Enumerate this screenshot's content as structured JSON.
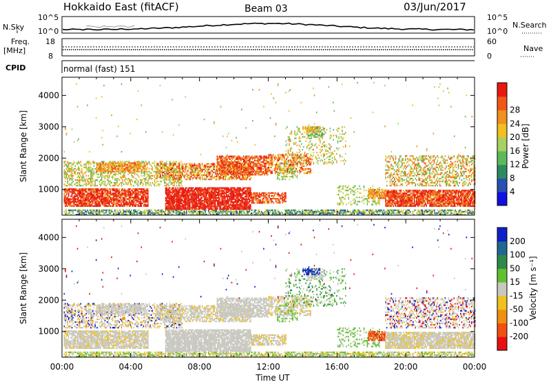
{
  "header": {
    "radar": "Hokkaido East (fitACF)",
    "beam": "Beam 03",
    "date": "03/Jun/2017"
  },
  "strip": {
    "nsky_label": "N.Sky",
    "nsearch_label": "N.Search",
    "count_ticks": [
      "10^5",
      "10^0"
    ],
    "freq_label": "Freq.",
    "freq_unit": "[MHz]",
    "freq_ticks": [
      "18",
      "8"
    ],
    "nave_label": "Nave",
    "nave_ticks": [
      "60",
      "0"
    ],
    "cpid_label": "CPID",
    "cpid_value": "normal (fast) 151"
  },
  "chart_data": [
    {
      "type": "heatmap",
      "name": "power-panel",
      "title": "",
      "xlabel": "",
      "ylabel": "Slant Range [km]",
      "x_ticks": [
        "00:00",
        "04:00",
        "08:00",
        "12:00",
        "16:00",
        "20:00",
        "00:00"
      ],
      "y_ticks": [
        "1000",
        "2000",
        "3000",
        "4000"
      ],
      "ylim": [
        180,
        4580
      ],
      "colorbar": {
        "label": "Power [dB]",
        "ticks": [
          "4",
          "8",
          "12",
          "16",
          "20",
          "24",
          "28"
        ],
        "colors": [
          "#1010e0",
          "#2850b0",
          "#2e8a60",
          "#5fb85a",
          "#a8d060",
          "#f0c020",
          "#f09020",
          "#f05818",
          "#e81810"
        ]
      }
    },
    {
      "type": "heatmap",
      "name": "velocity-panel",
      "title": "",
      "xlabel": "Time UT",
      "ylabel": "Slant Range [km]",
      "x_ticks": [
        "00:00",
        "04:00",
        "08:00",
        "12:00",
        "16:00",
        "20:00",
        "00:00"
      ],
      "y_ticks": [
        "1000",
        "2000",
        "3000",
        "4000"
      ],
      "ylim": [
        180,
        4580
      ],
      "colorbar": {
        "label": "Velocity [m s⁻¹]",
        "ticks": [
          "200",
          "100",
          "50",
          "15",
          "-15",
          "-50",
          "-100",
          "-200"
        ],
        "colors": [
          "#1020c8",
          "#206890",
          "#2e8a48",
          "#60c030",
          "#c8c8c0",
          "#f0c020",
          "#f09010",
          "#f05010",
          "#e81010"
        ]
      }
    }
  ]
}
